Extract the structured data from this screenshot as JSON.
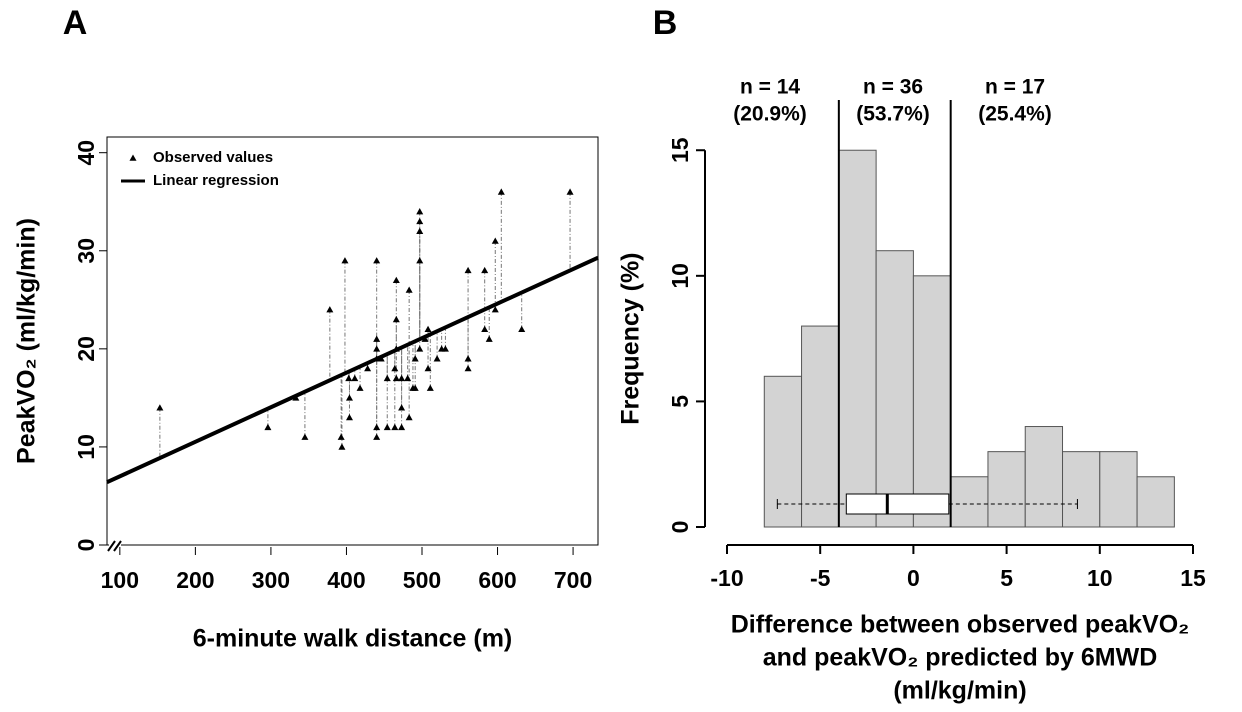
{
  "chart_data": [
    {
      "type": "scatter",
      "panel_label": "A",
      "xlabel": "6-minute walk distance (m)",
      "ylabel": "PeakVO₂ (ml/kg/min)",
      "xlim": [
        83,
        733
      ],
      "ylim": [
        0,
        41.6
      ],
      "xticks": [
        100,
        200,
        300,
        400,
        500,
        600,
        700
      ],
      "yticks": [
        0,
        10,
        20,
        30,
        40
      ],
      "series": [
        {
          "name": "Observed values",
          "color": "#000000",
          "x": [
            153,
            296,
            333,
            345,
            378,
            393,
            394,
            398,
            403,
            404,
            404,
            411,
            418,
            428,
            440,
            440,
            440,
            440,
            440,
            440,
            446,
            454,
            454,
            464,
            464,
            466,
            466,
            466,
            466,
            473,
            473,
            473,
            481,
            483,
            483,
            488,
            491,
            491,
            497,
            497,
            497,
            497,
            497,
            504,
            508,
            508,
            511,
            520,
            526,
            531,
            561,
            561,
            561,
            583,
            583,
            589,
            597,
            597,
            605,
            632,
            696
          ],
          "values": [
            14,
            12,
            15,
            11,
            24,
            11,
            10,
            29,
            17,
            15,
            13,
            17,
            16,
            18,
            29,
            21,
            20,
            19,
            12,
            11,
            19,
            17,
            12,
            18,
            12,
            27,
            23,
            20,
            17,
            17,
            14,
            12,
            17,
            26,
            13,
            16,
            19,
            16,
            34,
            33,
            32,
            29,
            20,
            21,
            22,
            18,
            16,
            19,
            20,
            20,
            28,
            19,
            18,
            28,
            22,
            21,
            24,
            31,
            36,
            22,
            36
          ]
        },
        {
          "name": "Linear regression",
          "color": "#000000",
          "x": [
            83,
            733
          ],
          "values": [
            6.4,
            29.3
          ]
        }
      ]
    },
    {
      "type": "histogram",
      "panel_label": "B",
      "xlabel": [
        "Difference between observed peakVO₂",
        "and peakVO₂ predicted by 6MWD",
        "(ml/kg/min)"
      ],
      "ylabel": "Frequency (%)",
      "xlim": [
        -10,
        15
      ],
      "ylim": [
        0,
        17
      ],
      "xticks": [
        -10,
        -5,
        0,
        5,
        10,
        15
      ],
      "yticks": [
        0,
        5,
        10,
        15
      ],
      "bins": [
        -8,
        -6,
        -4,
        -2,
        0,
        2,
        4,
        6,
        8,
        10,
        12,
        14
      ],
      "values": [
        6,
        8,
        15,
        11,
        10,
        2,
        3,
        4,
        3,
        3,
        2
      ],
      "color": "#d3d3d3",
      "vlines": [
        -4,
        2
      ],
      "boxplot": {
        "whislo": -7.3,
        "q1": -3.6,
        "med": -1.4,
        "q3": 1.9,
        "whishi": 8.8
      },
      "annotations": [
        [
          "n = 14",
          "(20.9%)"
        ],
        [
          "n = 36",
          "(53.7%)"
        ],
        [
          "n = 17",
          "(25.4%)"
        ]
      ]
    }
  ]
}
